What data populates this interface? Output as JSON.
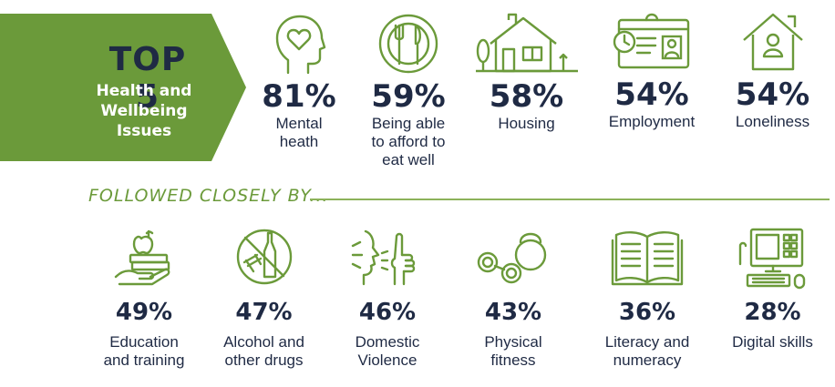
{
  "colors": {
    "brand_green": "#6b9a3a",
    "navy": "#1f2a44",
    "white": "#ffffff"
  },
  "banner": {
    "top": "TOP 5",
    "line1": "Health and",
    "line2": "Wellbeing",
    "line3": "Issues"
  },
  "top_items": [
    {
      "pct": "81%",
      "label1": "Mental",
      "label2": "heath",
      "label3": "",
      "icon": "head-heart-icon"
    },
    {
      "pct": "59%",
      "label1": "Being able",
      "label2": "to afford to",
      "label3": "eat well",
      "icon": "plate-cutlery-icon"
    },
    {
      "pct": "58%",
      "label1": "Housing",
      "label2": "",
      "label3": "",
      "icon": "house-icon"
    },
    {
      "pct": "54%",
      "label1": "Employment",
      "label2": "",
      "label3": "",
      "icon": "id-card-clock-icon"
    },
    {
      "pct": "54%",
      "label1": "Loneliness",
      "label2": "",
      "label3": "",
      "icon": "person-house-icon"
    }
  ],
  "followed": "FOLLOWED CLOSELY BY...",
  "bottom_items": [
    {
      "pct": "49%",
      "label1": "Education",
      "label2": "and training",
      "icon": "apple-books-icon"
    },
    {
      "pct": "47%",
      "label1": "Alcohol and",
      "label2": "other drugs",
      "icon": "no-drugs-icon"
    },
    {
      "pct": "46%",
      "label1": "Domestic",
      "label2": "Violence",
      "icon": "stop-hand-icon"
    },
    {
      "pct": "43%",
      "label1": "Physical",
      "label2": "fitness",
      "icon": "weights-icon"
    },
    {
      "pct": "36%",
      "label1": "Literacy and",
      "label2": "numeracy",
      "icon": "open-book-icon"
    },
    {
      "pct": "28%",
      "label1": "Digital skills",
      "label2": "",
      "icon": "computer-icon"
    }
  ]
}
